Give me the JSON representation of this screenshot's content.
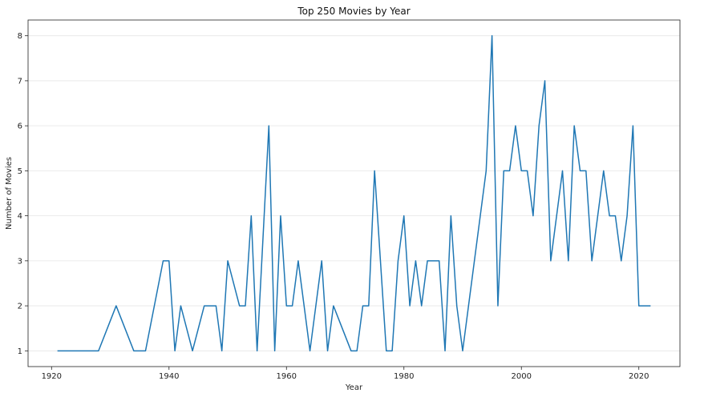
{
  "chart_data": {
    "type": "line",
    "title": "Top 250 Movies by Year",
    "xlabel": "Year",
    "ylabel": "Number of Movies",
    "xlim": [
      1916,
      2027
    ],
    "ylim": [
      0.65,
      8.35
    ],
    "grid": "horizontal",
    "xticks": [
      1920,
      1940,
      1960,
      1980,
      2000,
      2020
    ],
    "yticks": [
      1,
      2,
      3,
      4,
      5,
      6,
      7,
      8
    ],
    "xtick_labels": [
      "1920",
      "1940",
      "1960",
      "1980",
      "2000",
      "2020"
    ],
    "ytick_labels": [
      "1",
      "2",
      "3",
      "4",
      "5",
      "6",
      "7",
      "8"
    ],
    "series": [
      {
        "name": "Number of Movies",
        "color": "#1f77b4",
        "x": [
          1921,
          1922,
          1924,
          1925,
          1926,
          1927,
          1928,
          1931,
          1934,
          1936,
          1939,
          1940,
          1941,
          1942,
          1944,
          1946,
          1947,
          1948,
          1949,
          1950,
          1952,
          1953,
          1954,
          1955,
          1957,
          1958,
          1959,
          1960,
          1961,
          1962,
          1964,
          1966,
          1967,
          1968,
          1971,
          1972,
          1973,
          1974,
          1975,
          1977,
          1978,
          1979,
          1980,
          1981,
          1982,
          1983,
          1984,
          1985,
          1986,
          1987,
          1988,
          1989,
          1990,
          1994,
          1995,
          1996,
          1997,
          1998,
          1999,
          2000,
          2001,
          2002,
          2003,
          2004,
          2005,
          2007,
          2008,
          2009,
          2010,
          2011,
          2012,
          2014,
          2015,
          2016,
          2017,
          2018,
          2019,
          2020,
          2021,
          2022
        ],
        "values": [
          1,
          1,
          1,
          1,
          1,
          1,
          1,
          2,
          1,
          1,
          3,
          3,
          1,
          2,
          1,
          2,
          2,
          2,
          1,
          3,
          2,
          2,
          4,
          1,
          6,
          1,
          4,
          2,
          2,
          3,
          1,
          3,
          1,
          2,
          1,
          1,
          2,
          2,
          5,
          1,
          1,
          3,
          4,
          2,
          3,
          2,
          3,
          3,
          3,
          1,
          4,
          2,
          1,
          5,
          8,
          2,
          5,
          5,
          6,
          5,
          5,
          4,
          6,
          7,
          3,
          5,
          3,
          6,
          5,
          5,
          3,
          5,
          4,
          4,
          3,
          4,
          6,
          2,
          2,
          2
        ]
      }
    ]
  }
}
